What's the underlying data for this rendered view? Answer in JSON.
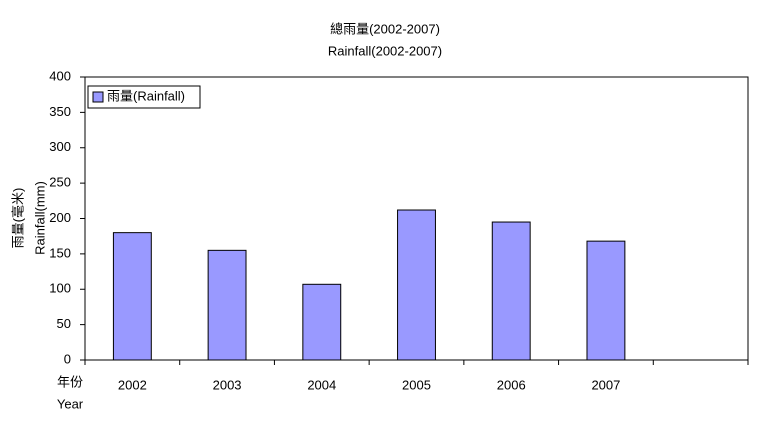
{
  "chart_data": {
    "type": "bar",
    "title": "總雨量(2002-2007)",
    "subtitle": "Rainfall(2002-2007)",
    "y_label": [
      "雨量(毫米)",
      "Rainfall(mm)"
    ],
    "x_label": [
      "年份",
      "Year"
    ],
    "categories": [
      "2002",
      "2003",
      "2004",
      "2005",
      "2006",
      "2007",
      null
    ],
    "series": [
      {
        "name": "雨量(Rainfall)",
        "color": "#9999ff",
        "values": [
          180,
          155,
          107,
          212,
          195,
          168,
          null
        ]
      }
    ],
    "ylim": [
      0,
      400
    ],
    "yticks": [
      0,
      50,
      100,
      150,
      200,
      250,
      300,
      350,
      400
    ],
    "grid": false,
    "legend": "top-left"
  }
}
